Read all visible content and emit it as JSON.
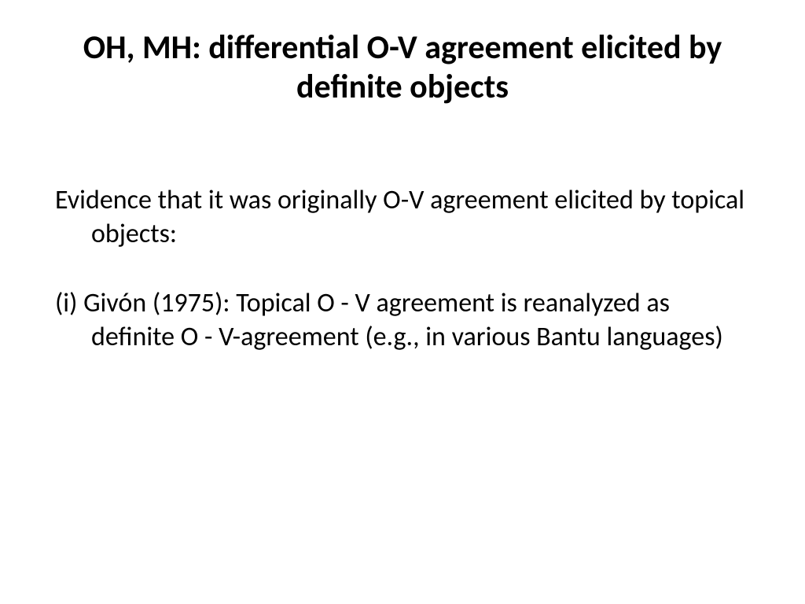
{
  "slide": {
    "title": "OH, MH: differential O-V agreement elicited by definite objects",
    "paragraphs": [
      "Evidence that  it was originally O-V agreement elicited by topical objects:",
      "(i) Givón (1975): Topical O - V agreement is reanalyzed as definite O - V-agreement (e.g., in various Bantu languages)"
    ]
  },
  "style": {
    "background_color": "#ffffff",
    "text_color": "#000000",
    "title_fontsize": 42,
    "title_fontweight": 700,
    "body_fontsize": 34,
    "body_fontweight": 400,
    "font_family": "Calibri"
  }
}
